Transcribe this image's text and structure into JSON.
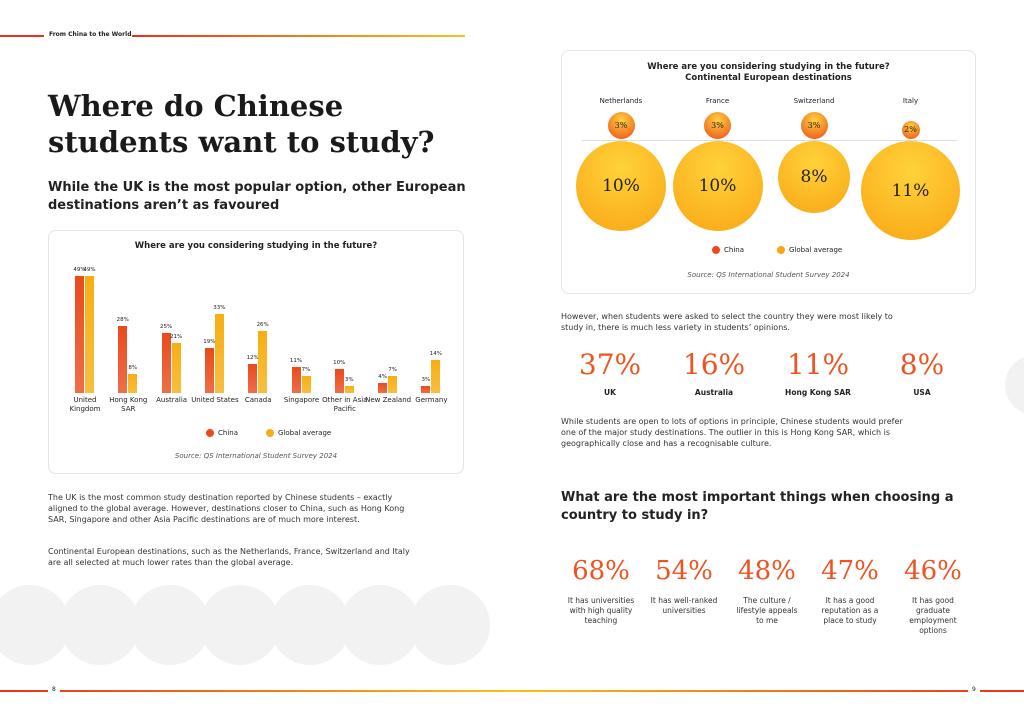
{
  "header": {
    "label": "From China to the World"
  },
  "left": {
    "title": "Where do Chinese students want to study?",
    "subtitle": "While the UK is the most popular option, other European destinations aren’t as favoured",
    "paragraphs": [
      "The UK is the most common study destination reported by Chinese students – exactly aligned to the global average. However, destinations closer to China, such as Hong Kong SAR, Singapore and other Asia Pacific destinations are of much more interest.",
      "Continental European destinations, such as the Netherlands, France, Switzerland and Italy are all selected at much lower rates than the global average."
    ],
    "page_number": "8"
  },
  "bar_chart": {
    "type": "bar",
    "title": "Where are you considering studying in the future?",
    "categories": [
      "United Kingdom",
      "Hong Kong SAR",
      "Australia",
      "United States",
      "Canada",
      "Singapore",
      "Other in Asia Pacific",
      "New Zealand",
      "Germany"
    ],
    "series": [
      {
        "name": "China",
        "color": "#ea4a1c",
        "values": [
          49,
          28,
          25,
          19,
          12,
          11,
          10,
          4,
          3
        ],
        "value_labels": [
          "49%",
          "28%",
          "25%",
          "19%",
          "12%",
          "11%",
          "10%",
          "4%",
          "3%"
        ]
      },
      {
        "name": "Global average",
        "color": "#f7ae12",
        "values": [
          49,
          8,
          21,
          33,
          26,
          7,
          3,
          7,
          14
        ],
        "value_labels": [
          "49%",
          "8%",
          "21%",
          "33%",
          "26%",
          "7%",
          "3%",
          "7%",
          "14%"
        ]
      }
    ],
    "source": "Source: QS International Student Survey 2024"
  },
  "bubble_chart": {
    "type": "bubble",
    "title": [
      "Where are you considering studying in the future?",
      "Continental European destinations"
    ],
    "categories": [
      "Netherlands",
      "France",
      "Switzerland",
      "Italy"
    ],
    "series": [
      {
        "name": "China",
        "color": "#ea4a1c",
        "values": [
          3,
          3,
          3,
          2
        ],
        "value_labels": [
          "3%",
          "3%",
          "3%",
          "2%"
        ]
      },
      {
        "name": "Global average",
        "color": "#f9a614",
        "values": [
          10,
          10,
          8,
          11
        ],
        "value_labels": [
          "10%",
          "10%",
          "8%",
          "11%"
        ]
      }
    ],
    "source": "Source: QS International Student Survey 2024"
  },
  "right": {
    "intro": "However, when students were asked to select the country they were most likely to study in, there is much less variety in students’ opinions.",
    "likely": [
      {
        "value": "37%",
        "label": "UK"
      },
      {
        "value": "16%",
        "label": "Australia"
      },
      {
        "value": "11%",
        "label": "Hong Kong SAR"
      },
      {
        "value": "8%",
        "label": "USA"
      }
    ],
    "note": "While students are open to lots of options in principle, Chinese students would prefer one of the major study destinations. The outlier in this is Hong Kong SAR, which is geographically close and has a recognisable culture.",
    "question": "What are the most important things when choosing a country to study in?",
    "factors": [
      {
        "value": "68%",
        "label": "It has universities with high quality teaching"
      },
      {
        "value": "54%",
        "label": "It has well-ranked universities"
      },
      {
        "value": "48%",
        "label": "The culture / lifestyle appeals to me"
      },
      {
        "value": "47%",
        "label": "It has a good reputation as a place to study"
      },
      {
        "value": "46%",
        "label": "It has good graduate employment options"
      }
    ],
    "page_number": "9"
  }
}
